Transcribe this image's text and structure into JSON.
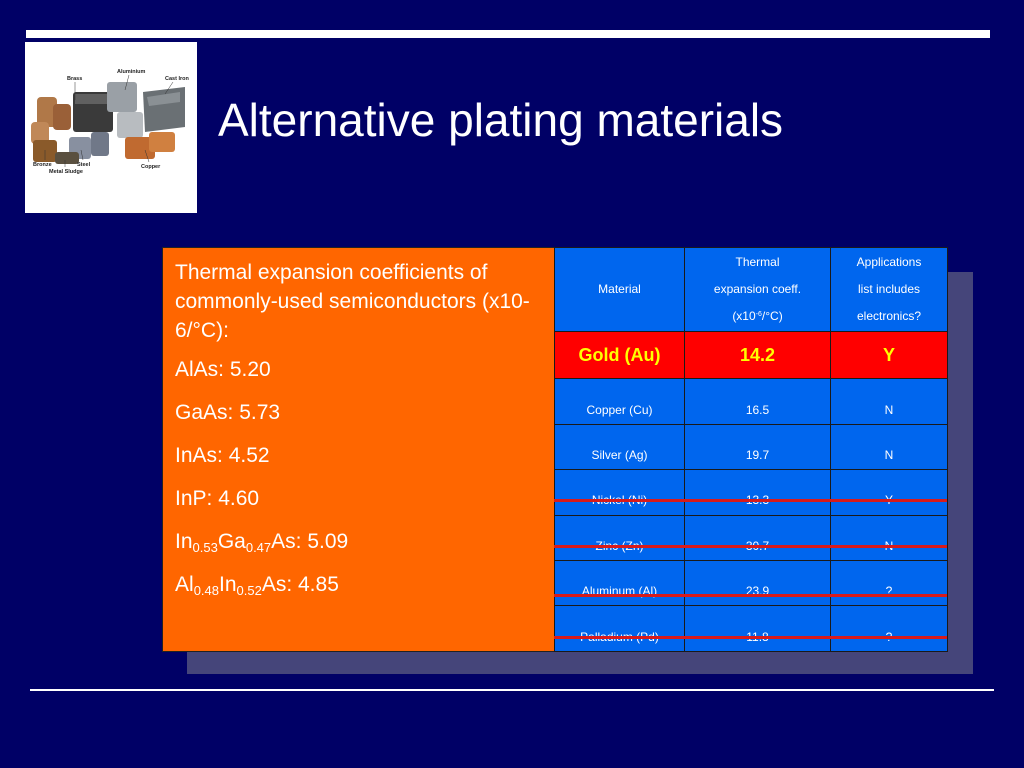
{
  "slide": {
    "title": "Alternative plating materials"
  },
  "photo": {
    "labels": [
      "Brass",
      "Aluminium",
      "Cast Iron",
      "Bronze",
      "Steel",
      "Copper",
      "Metal Sludge"
    ]
  },
  "left_box": {
    "intro": "Thermal expansion coefficients of commonly-used semiconductors (x10-6/°C):",
    "items": [
      {
        "text": "AlAs: 5.20"
      },
      {
        "text": "GaAs: 5.73"
      },
      {
        "text": "InAs: 4.52"
      },
      {
        "text": "InP: 4.60"
      },
      {
        "a": "In",
        "a_sub": "0.53",
        "b": "Ga",
        "b_sub": "0.47",
        "c": "As: 5.09"
      },
      {
        "a": "Al",
        "a_sub": "0.48",
        "b": "In",
        "b_sub": "0.52",
        "c": "As: 4.85"
      }
    ]
  },
  "table": {
    "headers": {
      "material": "Material",
      "thermal_1": "Thermal",
      "thermal_2": "expansion coeff.",
      "thermal_3_pre": "(x10",
      "thermal_3_sup": "-6",
      "thermal_3_post": "/°C)",
      "apps_1": "Applications",
      "apps_2": "list includes",
      "apps_3": "electronics?"
    },
    "rows": [
      {
        "material": "Gold (Au)",
        "coeff": "14.2",
        "apps": "Y"
      },
      {
        "material": "Copper (Cu)",
        "coeff": "16.5",
        "apps": "N"
      },
      {
        "material": "Silver (Ag)",
        "coeff": "19.7",
        "apps": "N"
      },
      {
        "material": "Nickel (Ni)",
        "coeff": "13.3",
        "apps": "Y"
      },
      {
        "material": "Zinc (Zn)",
        "coeff": "30.7",
        "apps": "N"
      },
      {
        "material": "Aluminum (Al)",
        "coeff": "23.9",
        "apps": "?"
      },
      {
        "material": "Palladium (Pd)",
        "coeff": "11.8",
        "apps": "?"
      }
    ],
    "struck_rows": [
      "Nickel (Ni)",
      "Zinc (Zn)",
      "Aluminum (Al)",
      "Palladium (Pd)"
    ]
  },
  "colors": {
    "background": "#000066",
    "orange_box": "#ff6600",
    "table_blue": "#0066ee",
    "gold_row": "#ff0000",
    "gold_text": "#ffff00",
    "strike": "#d81b1b"
  }
}
